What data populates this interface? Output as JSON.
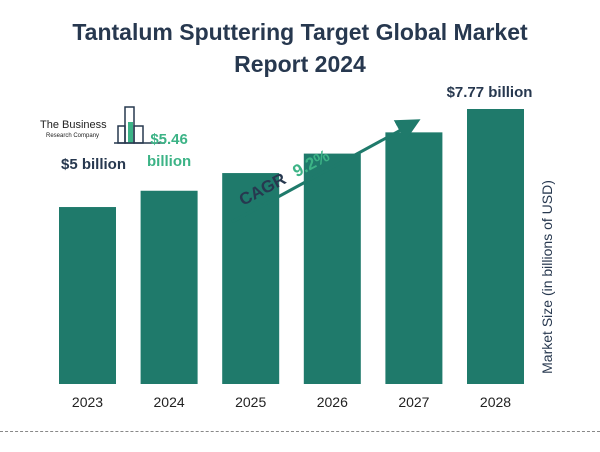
{
  "title_line1": "Tantalum Sputtering Target Global Market",
  "title_line2": "Report 2024",
  "logo": {
    "line1": "The Business",
    "line2": "Research Company"
  },
  "colors": {
    "bar": "#1f7a6b",
    "title": "#27384f",
    "accent": "#3cb386",
    "label": "#27384f"
  },
  "cagr": {
    "prefix": "CAGR",
    "value": "9.2%"
  },
  "chart_data": {
    "type": "bar",
    "categories": [
      "2023",
      "2024",
      "2025",
      "2026",
      "2027",
      "2028"
    ],
    "values": [
      5.0,
      5.46,
      5.96,
      6.51,
      7.11,
      7.77
    ],
    "units": "billion USD",
    "ylabel": "Market Size (in billions of USD)",
    "data_labels": [
      {
        "category": "2023",
        "text": "$5 billion"
      },
      {
        "category": "2024",
        "text": "$5.46 billion"
      },
      {
        "category": "2028",
        "text": "$7.77 billion"
      }
    ],
    "grid": false,
    "legend": "none"
  }
}
